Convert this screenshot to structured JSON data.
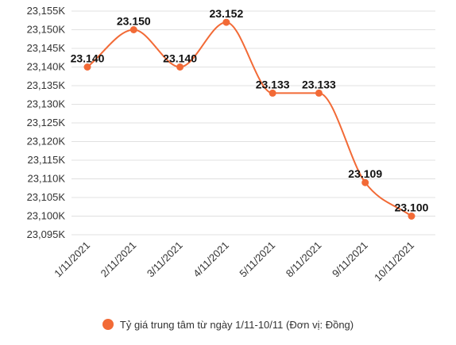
{
  "chart_data": {
    "type": "line",
    "categories": [
      "1/11/2021",
      "2/11/2021",
      "3/11/2021",
      "4/11/2021",
      "5/11/2021",
      "8/11/2021",
      "9/11/2021",
      "10/11/2021"
    ],
    "series": [
      {
        "name": "Tỷ giá trung tâm từ ngày 1/11-10/11 (Đơn vị: Đồng)",
        "values": [
          23140,
          23150,
          23140,
          23152,
          23133,
          23133,
          23109,
          23100
        ],
        "labels": [
          "23.140",
          "23.150",
          "23.140",
          "23.152",
          "23.133",
          "23.133",
          "23.109",
          "23.100"
        ],
        "color": "#f26a36"
      }
    ],
    "ylim": [
      23095,
      23155
    ],
    "yticks": [
      23095,
      23100,
      23105,
      23110,
      23115,
      23120,
      23125,
      23130,
      23135,
      23140,
      23145,
      23150,
      23155
    ],
    "ytick_labels": [
      "23,095K",
      "23,100K",
      "23,105K",
      "23,110K",
      "23,115K",
      "23,120K",
      "23,125K",
      "23,130K",
      "23,135K",
      "23,140K",
      "23,145K",
      "23,150K",
      "23,155K"
    ],
    "grid": true,
    "grid_color": "#e0e0e0",
    "legend_position": "bottom"
  }
}
